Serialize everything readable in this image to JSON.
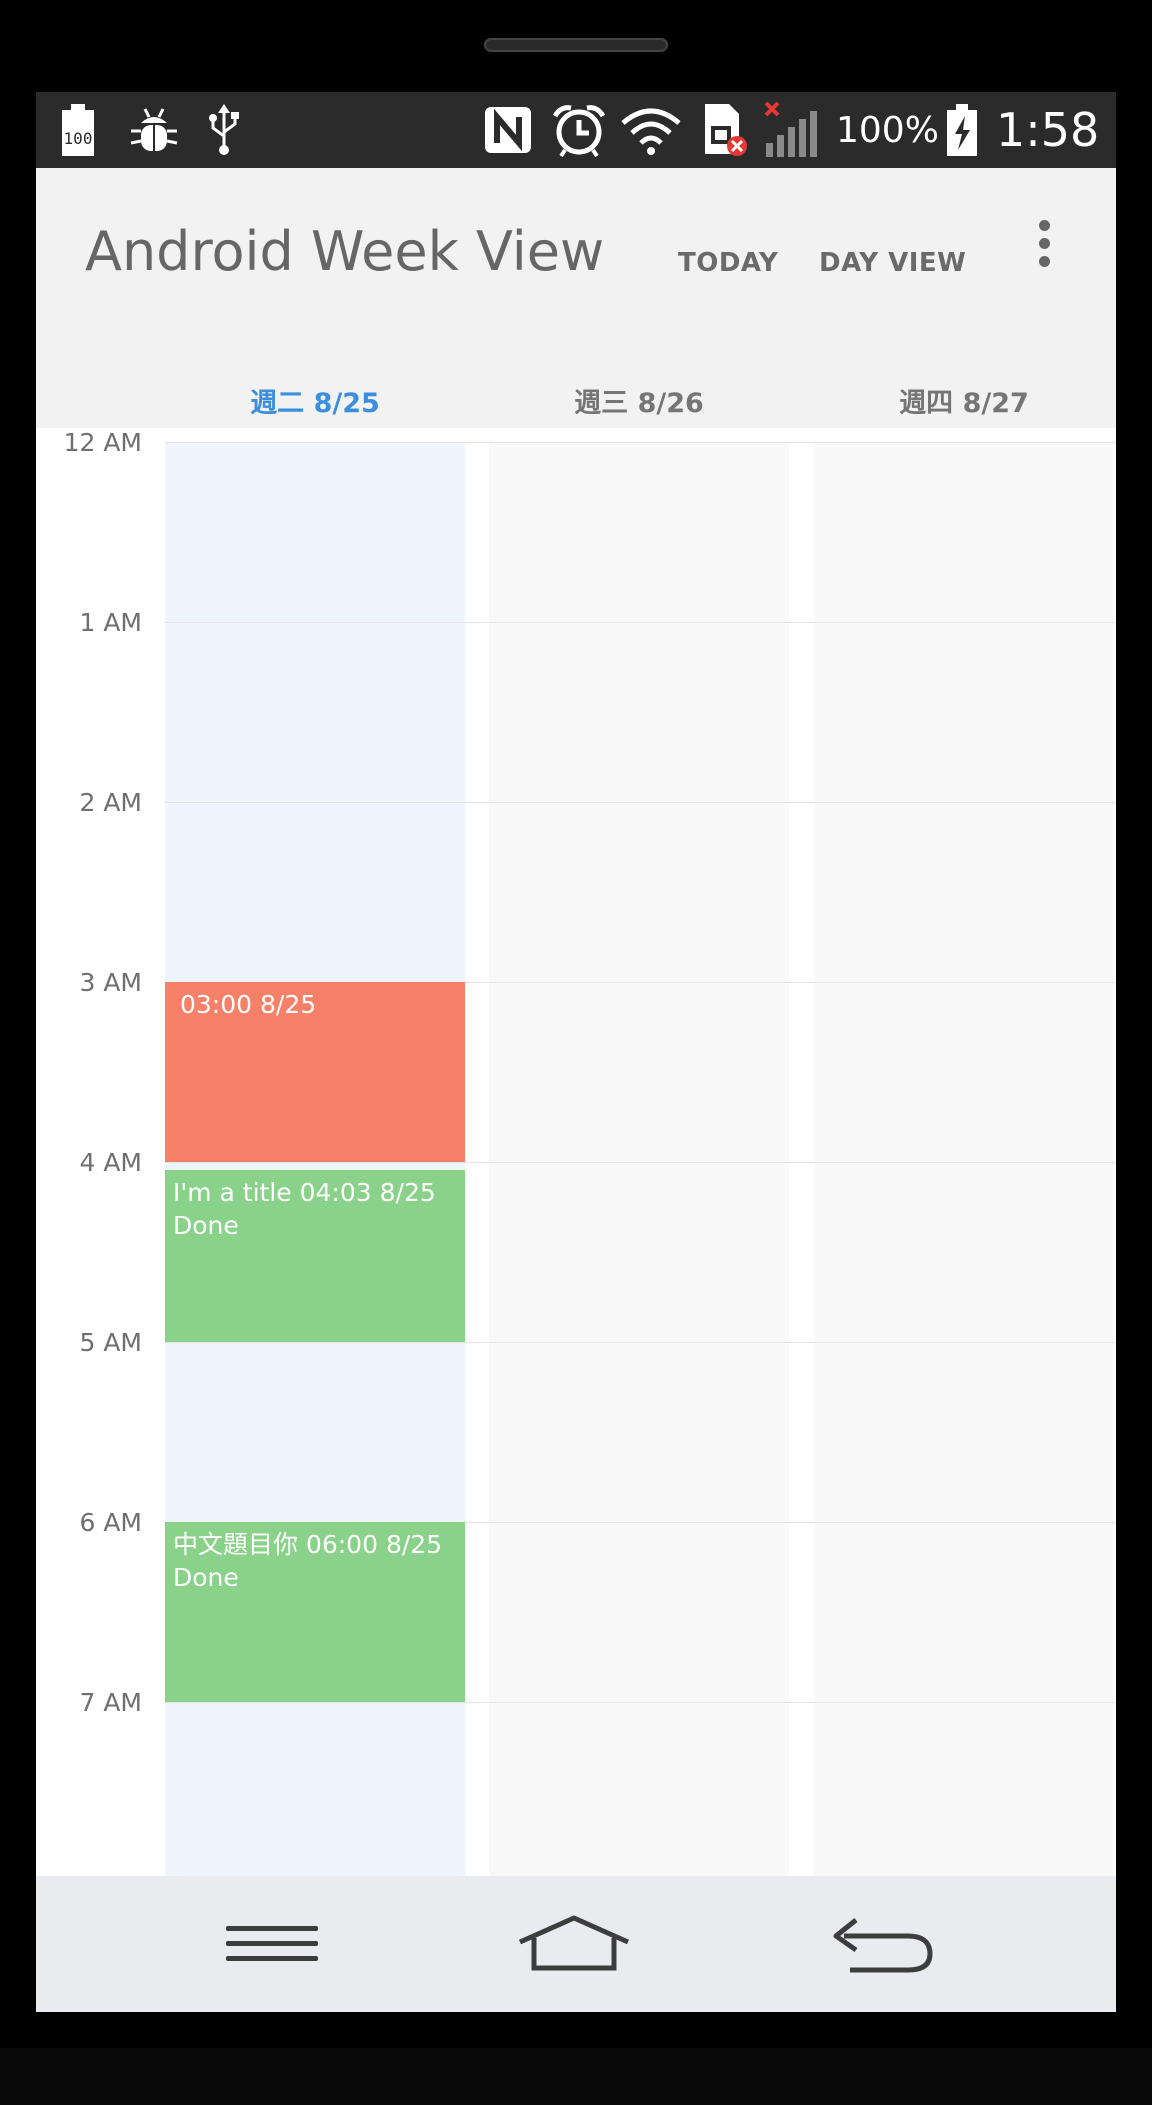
{
  "status_bar": {
    "battery_level_icon_text": "100",
    "battery_percent": "100%",
    "time": "1:58",
    "icons": [
      "battery-100-icon",
      "bug-icon",
      "usb-icon",
      "nfc-icon",
      "alarm-icon",
      "wifi-icon",
      "sim-error-icon",
      "signal-no-service-icon",
      "battery-charging-icon"
    ]
  },
  "app_bar": {
    "title": "Android Week View",
    "actions": {
      "today": "TODAY",
      "day_view": "DAY VIEW"
    },
    "overflow_icon": "more-vert-icon"
  },
  "days": [
    {
      "label": "週二 8/25",
      "is_today": true
    },
    {
      "label": "週三 8/26",
      "is_today": false
    },
    {
      "label": "週四 8/27",
      "is_today": false
    }
  ],
  "hours": [
    "12 AM",
    "1 AM",
    "2 AM",
    "3 AM",
    "4 AM",
    "5 AM",
    "6 AM",
    "7 AM"
  ],
  "events": [
    {
      "line1": "03:00 8/25",
      "line2": "",
      "color": "#f68068",
      "day_index": 0
    },
    {
      "line1": "I'm a title  04:03 8/25",
      "line2": "Done",
      "color": "#8ad28a",
      "day_index": 0
    },
    {
      "line1": "中文題目你 06:00 8/25",
      "line2": "Done",
      "color": "#8ad28a",
      "day_index": 0
    }
  ],
  "colors": {
    "today_accent": "#3b8fde",
    "today_column": "#eef5fe"
  },
  "nav_bar": {
    "icons": [
      "menu-icon",
      "home-icon",
      "back-icon"
    ]
  }
}
